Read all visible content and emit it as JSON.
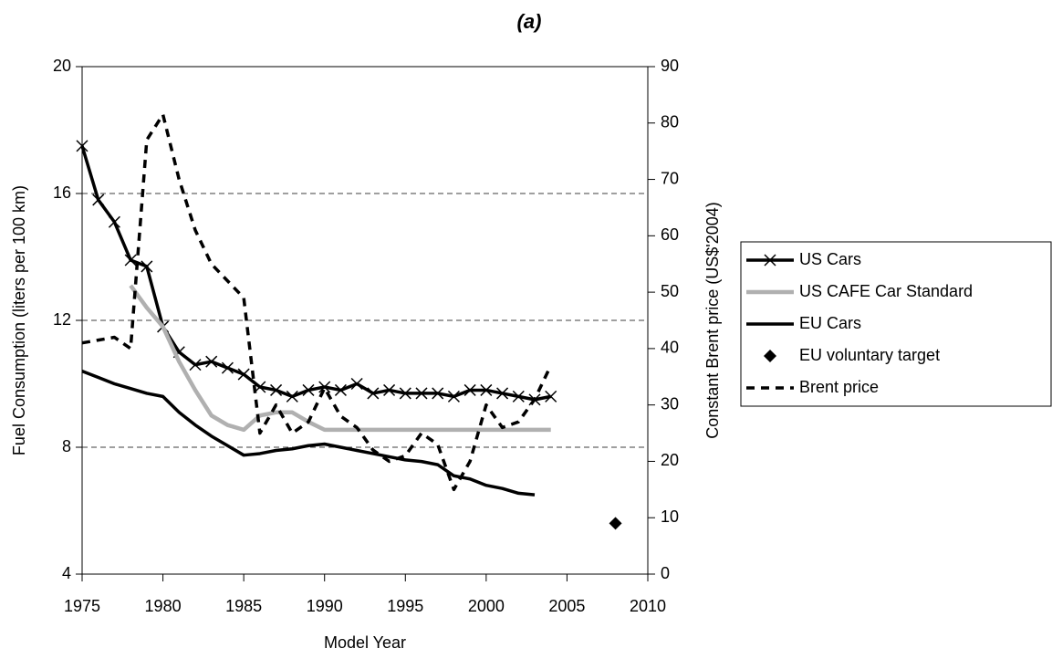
{
  "chart_data": {
    "type": "line",
    "title": "(a)",
    "xlabel": "Model Year",
    "ylabel": "Fuel Consumption (liters per 100 km)",
    "y2label": "Constant Brent price (US$'2004)",
    "xlim": [
      1975,
      2010
    ],
    "xticks": [
      1975,
      1980,
      1985,
      1990,
      1995,
      2000,
      2005,
      2010
    ],
    "ylim": [
      4,
      20
    ],
    "yticks": [
      4,
      8,
      12,
      16,
      20
    ],
    "y2lim": [
      0,
      90
    ],
    "y2ticks": [
      0,
      10,
      20,
      30,
      40,
      50,
      60,
      70,
      80,
      90
    ],
    "grid": true,
    "legend": "right",
    "series": [
      {
        "name": "US Cars",
        "color": "#000000",
        "style": "line-x",
        "x": [
          1975,
          1976,
          1977,
          1978,
          1979,
          1980,
          1981,
          1982,
          1983,
          1984,
          1985,
          1986,
          1987,
          1988,
          1989,
          1990,
          1991,
          1992,
          1993,
          1994,
          1995,
          1996,
          1997,
          1998,
          1999,
          2000,
          2001,
          2002,
          2003,
          2004
        ],
        "values": [
          17.5,
          15.8,
          15.1,
          13.9,
          13.7,
          11.8,
          11.0,
          10.6,
          10.7,
          10.5,
          10.3,
          9.9,
          9.8,
          9.6,
          9.8,
          9.9,
          9.8,
          10.0,
          9.7,
          9.8,
          9.7,
          9.7,
          9.7,
          9.6,
          9.8,
          9.8,
          9.7,
          9.6,
          9.5,
          9.6
        ]
      },
      {
        "name": "US CAFE Car Standard",
        "color": "#b0b0b0",
        "style": "line-thick",
        "x": [
          1978,
          1979,
          1980,
          1981,
          1982,
          1983,
          1984,
          1985,
          1986,
          1987,
          1988,
          1989,
          1990,
          1991,
          1992,
          1993,
          1994,
          1995,
          1996,
          1997,
          1998,
          1999,
          2000,
          2001,
          2002,
          2003,
          2004
        ],
        "values": [
          13.1,
          12.4,
          11.8,
          10.7,
          9.8,
          9.0,
          8.7,
          8.55,
          9.0,
          9.1,
          9.1,
          8.8,
          8.55,
          8.55,
          8.55,
          8.55,
          8.55,
          8.55,
          8.55,
          8.55,
          8.55,
          8.55,
          8.55,
          8.55,
          8.55,
          8.55,
          8.55
        ]
      },
      {
        "name": "EU Cars",
        "color": "#000000",
        "style": "line",
        "x": [
          1975,
          1976,
          1977,
          1978,
          1979,
          1980,
          1981,
          1982,
          1983,
          1984,
          1985,
          1986,
          1987,
          1988,
          1989,
          1990,
          1991,
          1992,
          1993,
          1994,
          1995,
          1996,
          1997,
          1998,
          1999,
          2000,
          2001,
          2002,
          2003
        ],
        "values": [
          10.4,
          10.2,
          10.0,
          9.85,
          9.7,
          9.6,
          9.1,
          8.7,
          8.35,
          8.05,
          7.75,
          7.8,
          7.9,
          7.95,
          8.05,
          8.1,
          8.0,
          7.9,
          7.8,
          7.7,
          7.6,
          7.55,
          7.45,
          7.1,
          7.0,
          6.8,
          6.7,
          6.55,
          6.5
        ]
      },
      {
        "name": "EU voluntary target",
        "color": "#000000",
        "style": "diamond",
        "x": [
          2008
        ],
        "values": [
          5.6
        ]
      },
      {
        "name": "Brent price",
        "color": "#000000",
        "style": "dashed",
        "axis": "y2",
        "x": [
          1975,
          1976,
          1977,
          1978,
          1979,
          1980,
          1981,
          1982,
          1983,
          1984,
          1985,
          1986,
          1987,
          1988,
          1989,
          1990,
          1991,
          1992,
          1993,
          1994,
          1995,
          1996,
          1997,
          1998,
          1999,
          2000,
          2001,
          2002,
          2003,
          2004
        ],
        "values": [
          41,
          41.5,
          42,
          40,
          77,
          81.5,
          70,
          61,
          55,
          52,
          49,
          25,
          30,
          25,
          27,
          33,
          28,
          26,
          22,
          20,
          21,
          25,
          23,
          15,
          20,
          30,
          26,
          27,
          31,
          37
        ]
      }
    ]
  }
}
